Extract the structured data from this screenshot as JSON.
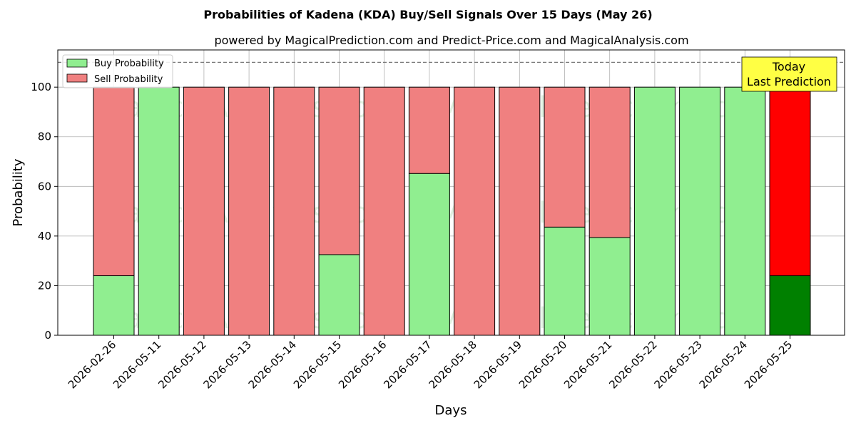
{
  "chart_data": {
    "type": "bar",
    "stacked": true,
    "title": "Probabilities of Kadena (KDA) Buy/Sell Signals Over 15 Days (May 26)",
    "subtitle": "powered by MagicalPrediction.com and Predict-Price.com and MagicalAnalysis.com",
    "xlabel": "Days",
    "ylabel": "Probability",
    "ylim": [
      0,
      115
    ],
    "yticks": [
      0,
      20,
      40,
      60,
      80,
      100
    ],
    "reference_line": 110,
    "grid": true,
    "legend_position": "top-left",
    "categories": [
      "2026-02-26",
      "2026-05-11",
      "2026-05-12",
      "2026-05-13",
      "2026-05-14",
      "2026-05-15",
      "2026-05-16",
      "2026-05-17",
      "2026-05-18",
      "2026-05-19",
      "2026-05-20",
      "2026-05-21",
      "2026-05-22",
      "2026-05-23",
      "2026-05-24",
      "2026-05-25"
    ],
    "series": [
      {
        "name": "Buy Probability",
        "color": "#90ee90",
        "highlight_color": "#008000",
        "values": [
          24,
          100,
          0,
          0,
          0,
          32.5,
          0,
          65.2,
          0,
          0,
          43.6,
          39.4,
          100,
          100,
          100,
          24
        ]
      },
      {
        "name": "Sell Probability",
        "color": "#f08080",
        "highlight_color": "#ff0000",
        "values": [
          76,
          0,
          100,
          100,
          100,
          67.5,
          100,
          34.8,
          100,
          100,
          56.4,
          60.6,
          0,
          0,
          0,
          76
        ]
      }
    ],
    "highlight_index": 15,
    "annotation": {
      "line1": "Today",
      "line2": "Last Prediction",
      "color": "#ffff44"
    },
    "watermarks": [
      "MagicalAnalysis.com",
      "MagicalPrediction.com"
    ]
  }
}
